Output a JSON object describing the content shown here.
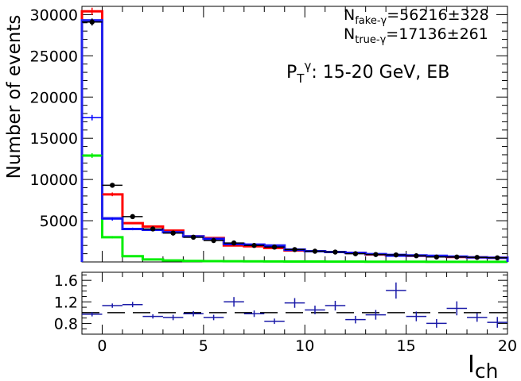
{
  "colors": {
    "data": "#000000",
    "fake": "#ff0000",
    "true": "#00ee00",
    "fit": "#0000ff",
    "hist_fake": "#ff0000",
    "hist_total": "#2222ee",
    "ratio": "#1a1aa8",
    "reference": "#000000"
  },
  "labels": {
    "ylabel": "Number of events",
    "xlabel_main": "I",
    "xlabel_sub": "ch",
    "fake_prefix": "N",
    "fake_sub": "fake-γ",
    "fake_value": "=56216±328",
    "true_prefix": "N",
    "true_sub": "true-γ",
    "true_value": "=17136±261",
    "pt_main": "P",
    "pt_sub": "T",
    "pt_sup": "γ",
    "pt_rest": ": 15-20 GeV, EB"
  },
  "chart_data": [
    {
      "type": "line",
      "xlim": [
        -1,
        20
      ],
      "ylim": [
        0,
        31000
      ],
      "yticks": [
        5000,
        10000,
        15000,
        20000,
        25000,
        30000
      ],
      "ytick_labels": [
        "5000",
        "10000",
        "15000",
        "20000",
        "25000",
        "30000"
      ],
      "bin_edges": [
        -1,
        0,
        1,
        2,
        3,
        4,
        5,
        6,
        7,
        8,
        9,
        10,
        11,
        12,
        13,
        14,
        15,
        16,
        17,
        18,
        19,
        20
      ],
      "series": [
        {
          "role": "fake_hist",
          "values": [
            30400,
            8200,
            4700,
            4300,
            3800,
            3100,
            2900,
            2000,
            1900,
            1700,
            1400,
            1300,
            1200,
            1100,
            900,
            800,
            750,
            700,
            600,
            550,
            500
          ]
        },
        {
          "role": "total_hist",
          "values": [
            29300,
            5300,
            4000,
            3900,
            3600,
            3100,
            2800,
            2200,
            2100,
            2000,
            1500,
            1300,
            1200,
            1100,
            950,
            850,
            800,
            750,
            650,
            550,
            500
          ]
        },
        {
          "role": "true_hist",
          "values": [
            12900,
            3000,
            700,
            300,
            180,
            120,
            100,
            80,
            70,
            60,
            50,
            45,
            40,
            35,
            30,
            25,
            20,
            18,
            15,
            12,
            10
          ]
        },
        {
          "role": "data_points",
          "x": [
            -0.5,
            0.5,
            1.5,
            2.5,
            3.5,
            4.5,
            5.5,
            6.5,
            7.5,
            8.5,
            9.5,
            10.5,
            11.5,
            12.5,
            13.5,
            14.5,
            15.5,
            16.5,
            17.5,
            18.5,
            19.5
          ],
          "values": [
            29100,
            9300,
            5500,
            4000,
            3500,
            3000,
            2600,
            2300,
            2000,
            1800,
            1500,
            1300,
            1200,
            1000,
            900,
            850,
            750,
            600,
            600,
            550,
            500
          ]
        },
        {
          "role": "fake_points",
          "x": [
            -0.5,
            0.5
          ],
          "values": [
            30400,
            8200
          ]
        },
        {
          "role": "fit_points",
          "x": [
            -0.5,
            0.5,
            1.5,
            2.5,
            3.5,
            4.5,
            5.5,
            6.5,
            7.5,
            8.5,
            9.5,
            10.5,
            11.5,
            12.5,
            13.5,
            14.5,
            15.5,
            16.5,
            17.5,
            18.5,
            19.5
          ],
          "values": [
            17500,
            5200,
            4000,
            3900,
            3600,
            3000,
            2800,
            2100,
            2100,
            1900,
            1400,
            1300,
            1200,
            1100,
            900,
            700,
            700,
            650,
            650,
            550,
            500
          ]
        },
        {
          "role": "true_points",
          "x": [
            -0.5,
            0.5
          ],
          "values": [
            12900,
            3000
          ]
        }
      ]
    },
    {
      "type": "scatter",
      "xlim": [
        -1,
        20
      ],
      "ylim": [
        0.6,
        1.75
      ],
      "yticks": [
        0.8,
        1.2,
        1.6
      ],
      "ytick_labels": [
        "0.8",
        "1.2",
        "1.6"
      ],
      "xticks": [
        0,
        5,
        10,
        15,
        20
      ],
      "xtick_labels": [
        "0",
        "5",
        "10",
        "15",
        "20"
      ],
      "reference": 1.0,
      "x": [
        -0.5,
        0.5,
        1.5,
        2.5,
        3.5,
        4.5,
        5.5,
        6.5,
        7.5,
        8.5,
        9.5,
        10.5,
        11.5,
        12.5,
        13.5,
        14.5,
        15.5,
        16.5,
        17.5,
        18.5,
        19.5
      ],
      "values": [
        0.97,
        1.13,
        1.15,
        0.93,
        0.91,
        0.98,
        0.91,
        1.2,
        0.98,
        0.84,
        1.18,
        1.05,
        1.13,
        0.87,
        0.96,
        1.41,
        0.93,
        0.8,
        1.08,
        0.91,
        0.82
      ],
      "errors": [
        0.04,
        0.04,
        0.05,
        0.04,
        0.05,
        0.05,
        0.05,
        0.09,
        0.06,
        0.05,
        0.09,
        0.08,
        0.09,
        0.07,
        0.09,
        0.15,
        0.09,
        0.08,
        0.13,
        0.08,
        0.1
      ]
    }
  ]
}
